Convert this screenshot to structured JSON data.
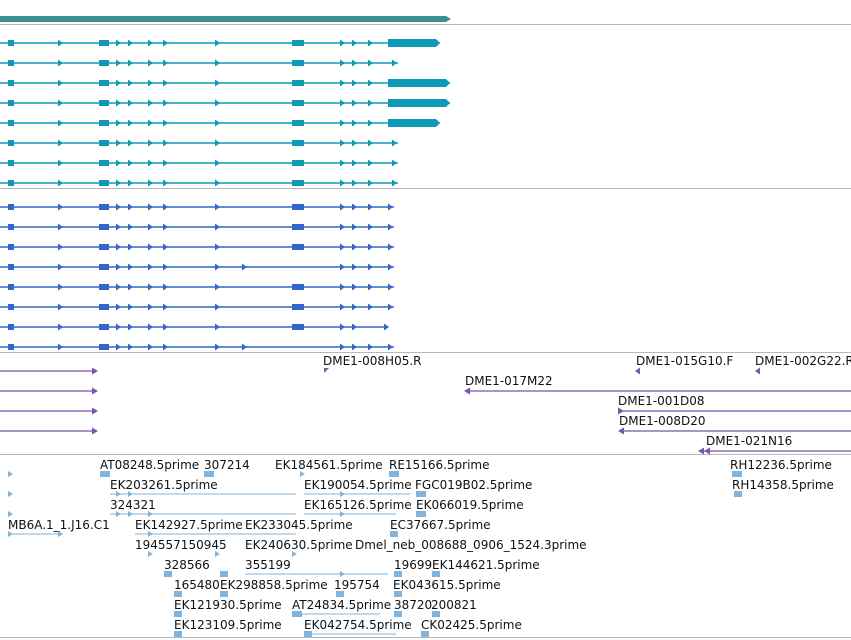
{
  "colors": {
    "gene": "#3a8f91",
    "transcript_a": "#0e9ab5",
    "transcript_b": "#3366cc",
    "clone": "#7755aa",
    "est": "#7fb5de",
    "divider": "#b8b8b8"
  },
  "tracks": {
    "clones": [
      {
        "label": "DME1-008H05.R",
        "strand": "-"
      },
      {
        "label": "DME1-015G10.F",
        "strand": "-"
      },
      {
        "label": "DME1-002G22.R",
        "strand": "-"
      },
      {
        "label": "DME1-017M22",
        "strand": "-"
      },
      {
        "label": "DME1-001D08",
        "strand": "-"
      },
      {
        "label": "DME1-008D20",
        "strand": "-"
      },
      {
        "label": "DME1-021N16",
        "strand": "-"
      }
    ],
    "ests": [
      "AT08248.5prime",
      "307214",
      "EK184561.5prime",
      "RE15166.5prime",
      "RH12236.5prime",
      "EK203261.5prime",
      "EK190054.5prime",
      "FGC019B02.5prime",
      "RH14358.5prime",
      "324321",
      "EK165126.5prime",
      "EK066019.5prime",
      "MB6A.1_1.J16.C1",
      "EK142927.5prime",
      "EK233045.5prime",
      "EC37667.5prime",
      "194557150945",
      "EK240630.5prime",
      "Dmel_neb_008688_0906_1524.3prime",
      "328566",
      "355199",
      "19699",
      "EK144621.5prime",
      "165480",
      "EK298858.5prime",
      "195754",
      "EK043615.5prime",
      "EK121930.5prime",
      "AT24834.5prime",
      "38720",
      "200821",
      "EK123109.5prime",
      "EK042754.5prime",
      "CK02425.5prime"
    ]
  }
}
